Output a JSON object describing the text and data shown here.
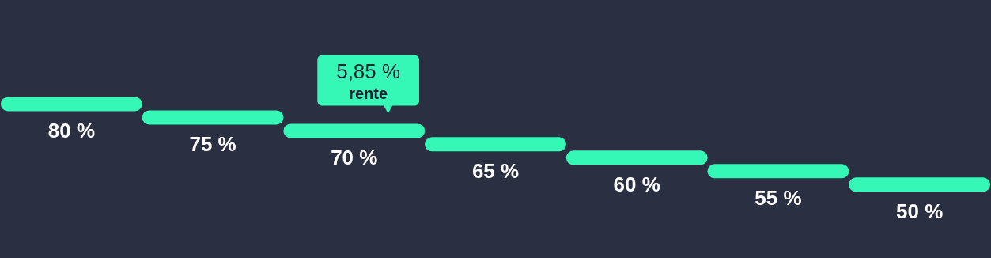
{
  "chart_data": {
    "type": "other",
    "categories": [
      null,
      null,
      null,
      null,
      null,
      null,
      null
    ],
    "values": [
      80,
      75,
      70,
      65,
      60,
      55,
      50
    ],
    "value_labels": [
      "80 %",
      "75 %",
      "70 %",
      "65 %",
      "60 %",
      "55 %",
      "50 %"
    ],
    "color": "#35f7b6",
    "annotations": [
      "5,85 %\nrente"
    ]
  }
}
